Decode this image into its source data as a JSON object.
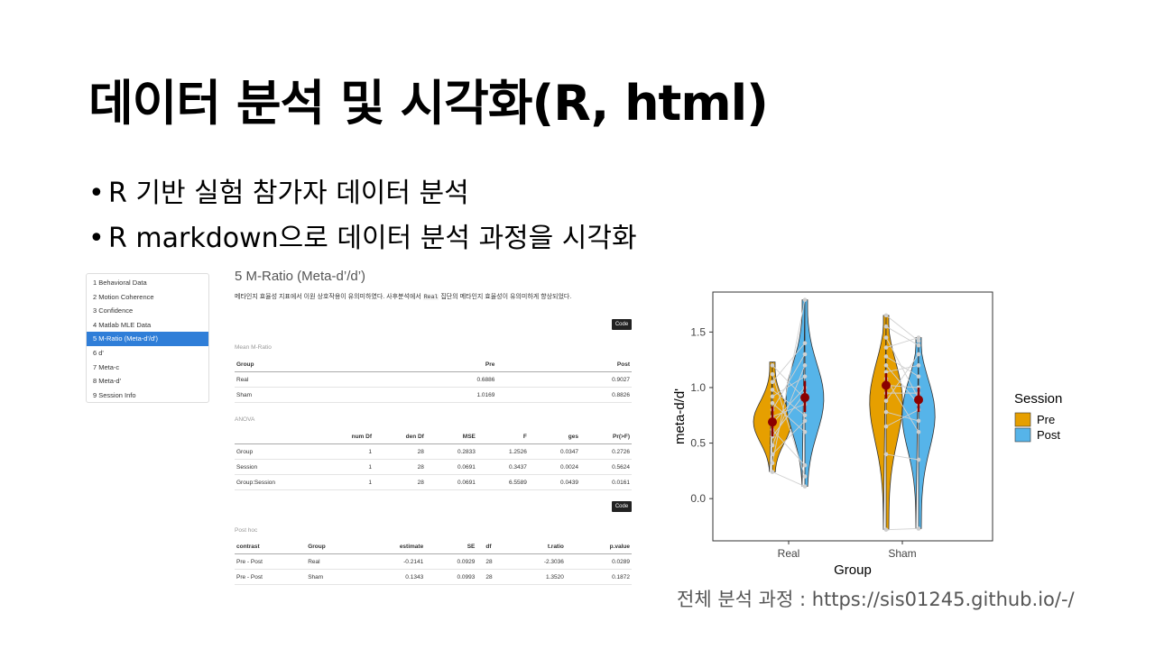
{
  "slide": {
    "title": "데이터 분석 및 시각화(R, html)",
    "bullets": [
      "R 기반 실험 참가자 데이터 분석",
      "R markdown으로 데이터 분석 과정을 시각화"
    ],
    "bullet_symbol": "•",
    "footer": "전체 분석 과정 : https://sis01245.github.io/-/"
  },
  "toc": {
    "items": [
      "1 Behavioral Data",
      "2 Motion Coherence",
      "3 Confidence",
      "4 Matlab MLE Data",
      "5 M-Ratio (Meta-d'/d')",
      "6 d'",
      "7 Meta-c",
      "8 Meta-d'",
      "9 Session Info"
    ],
    "active_index": 4
  },
  "report": {
    "heading": "5 M-Ratio (Meta-d’/d’)",
    "paragraph_before": "메타인지 효율성 지표에서 이원 상호작용이 유의미하였다. 사후분석에서 ",
    "paragraph_code": "Real",
    "paragraph_after": " 집단의 메타인지 효율성이 유의미하게 향상되었다.",
    "code_label": "Code",
    "mean_caption": "Mean M-Ratio",
    "mean_table": {
      "headers": [
        "Group",
        "Pre",
        "Post"
      ],
      "rows": [
        [
          "Real",
          "0.6886",
          "0.9027"
        ],
        [
          "Sham",
          "1.0169",
          "0.8826"
        ]
      ]
    },
    "anova_caption": "ANOVA",
    "anova_table": {
      "headers": [
        "",
        "num Df",
        "den Df",
        "MSE",
        "F",
        "ges",
        "Pr(>F)"
      ],
      "rows": [
        [
          "Group",
          "1",
          "28",
          "0.2833",
          "1.2526",
          "0.0347",
          "0.2726"
        ],
        [
          "Session",
          "1",
          "28",
          "0.0691",
          "0.3437",
          "0.0024",
          "0.5624"
        ],
        [
          "Group:Session",
          "1",
          "28",
          "0.0691",
          "6.5589",
          "0.0439",
          "0.0161"
        ]
      ]
    },
    "posthoc_caption": "Post hoc",
    "posthoc_table": {
      "headers": [
        "contrast",
        "Group",
        "estimate",
        "SE",
        "df",
        "t.ratio",
        "p.value"
      ],
      "rows": [
        [
          "Pre - Post",
          "Real",
          "-0.2141",
          "0.0929",
          "28",
          "-2.3036",
          "0.0289"
        ],
        [
          "Pre - Post",
          "Sham",
          "0.1343",
          "0.0993",
          "28",
          "1.3520",
          "0.1872"
        ]
      ]
    }
  },
  "chart_data": {
    "type": "violin",
    "xlabel": "Group",
    "ylabel": "meta-d/d'",
    "categories": [
      "Real",
      "Sham"
    ],
    "ylim": [
      -0.38,
      1.86
    ],
    "yticks": [
      0.0,
      0.5,
      1.0,
      1.5
    ],
    "ytick_labels": [
      "0.0",
      "0.5",
      "1.0",
      "1.5"
    ],
    "legend_title": "Session",
    "legend_position": "right",
    "series": [
      {
        "name": "Pre",
        "color": "#E69F00",
        "means": [
          0.69,
          1.02
        ],
        "ci_low": [
          0.56,
          0.9
        ],
        "ci_high": [
          0.83,
          1.13
        ],
        "min": [
          0.24,
          -0.28
        ],
        "max": [
          1.23,
          1.65
        ]
      },
      {
        "name": "Post",
        "color": "#56B4E9",
        "means": [
          0.91,
          0.89
        ],
        "ci_low": [
          0.78,
          0.78
        ],
        "ci_high": [
          1.06,
          1.0
        ],
        "min": [
          0.11,
          -0.27
        ],
        "max": [
          1.79,
          1.45
        ]
      }
    ],
    "paired_points": [
      {
        "group": "Real",
        "pre": [
          0.24,
          0.32,
          0.4,
          0.48,
          0.56,
          0.62,
          0.68,
          0.74,
          0.8,
          0.86,
          0.92,
          0.98,
          1.05,
          1.12,
          1.2
        ],
        "post": [
          0.11,
          1.79,
          0.7,
          1.2,
          0.95,
          0.3,
          1.0,
          0.85,
          1.3,
          0.6,
          1.1,
          0.75,
          1.4,
          0.2,
          0.9
        ]
      },
      {
        "group": "Sham",
        "pre": [
          -0.28,
          0.4,
          0.65,
          0.78,
          0.88,
          0.95,
          1.02,
          1.08,
          1.14,
          1.2,
          1.28,
          1.36,
          1.45,
          1.55,
          1.65
        ],
        "post": [
          -0.27,
          0.35,
          0.8,
          0.7,
          1.3,
          0.95,
          1.0,
          0.6,
          1.2,
          0.85,
          1.1,
          1.45,
          0.9,
          1.38,
          1.42
        ]
      }
    ]
  }
}
